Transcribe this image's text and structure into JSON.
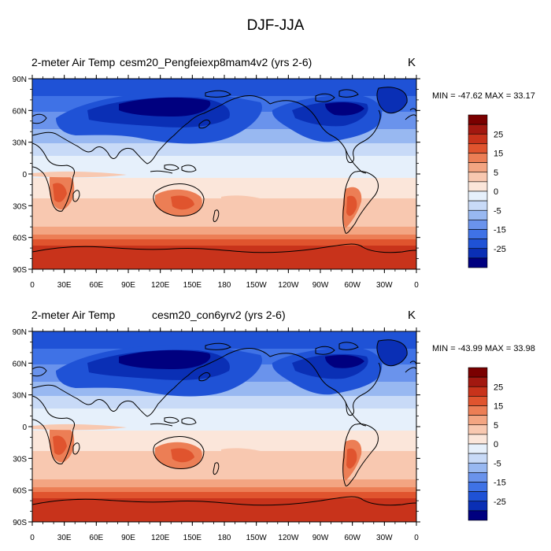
{
  "figure_title": "DJF-JJA",
  "panels": [
    {
      "variable": "2-meter Air Temp",
      "case": "cesm20_Pengfeiexp8mam4v2 (yrs 2-6)",
      "units": "K",
      "stats": "MIN = -47.62 MAX =  33.17"
    },
    {
      "variable": "2-meter Air Temp",
      "case": "cesm20_con6yrv2 (yrs 2-6)",
      "units": "K",
      "stats": "MIN = -43.99 MAX =  33.98"
    }
  ],
  "axes": {
    "lat_labels": [
      "90N",
      "60N",
      "30N",
      "0",
      "30S",
      "60S",
      "90S"
    ],
    "lon_labels": [
      "0",
      "30E",
      "60E",
      "90E",
      "120E",
      "150E",
      "180",
      "150W",
      "120W",
      "90W",
      "60W",
      "30W",
      "0"
    ]
  },
  "colorbar": {
    "levels": [
      -30,
      -25,
      -20,
      -15,
      -10,
      -5,
      -2,
      0,
      2,
      5,
      10,
      15,
      20,
      25,
      30
    ],
    "colors": [
      "#00007f",
      "#0a2fb5",
      "#1f52d6",
      "#3f72e6",
      "#6a93ec",
      "#98b8f1",
      "#c8daf7",
      "#e6f0fb",
      "#fbe6da",
      "#f8c8b0",
      "#f3a582",
      "#ec7e55",
      "#e0542e",
      "#c8331b",
      "#a21810",
      "#7a0000"
    ],
    "tick_labels": [
      "25",
      "15",
      "5",
      "0",
      "-5",
      "-15",
      "-25"
    ]
  },
  "colors": {
    "land_outline": "#000000",
    "frame": "#000000"
  }
}
